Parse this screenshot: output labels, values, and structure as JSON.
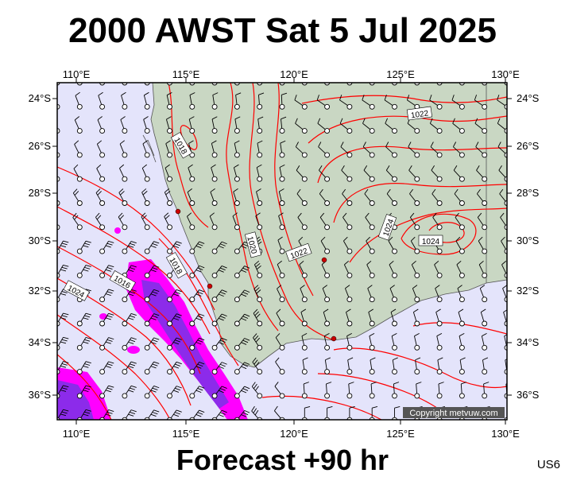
{
  "header": {
    "title": "2000 AWST Sat 5 Jul 2025"
  },
  "footer": {
    "forecast": "Forecast +90 hr",
    "code": "US6"
  },
  "map": {
    "lon_labels": [
      "110°E",
      "115°E",
      "120°E",
      "125°E",
      "130°E"
    ],
    "lat_labels": [
      "24°S",
      "26°S",
      "28°S",
      "30°S",
      "32°S",
      "34°S",
      "36°S"
    ],
    "isobar_labels": [
      "1022",
      "1018",
      "1020",
      "1024",
      "1022",
      "1024",
      "1024",
      "1018",
      "1016",
      "1024"
    ],
    "copyright": "Copyright metvuw.com",
    "colors": {
      "ocean": "#e4e4fb",
      "land": "#c9d7c3",
      "isobar": "#ff0000",
      "rain_magenta": "#ff00ff",
      "rain_purple": "#8c2bea"
    }
  }
}
